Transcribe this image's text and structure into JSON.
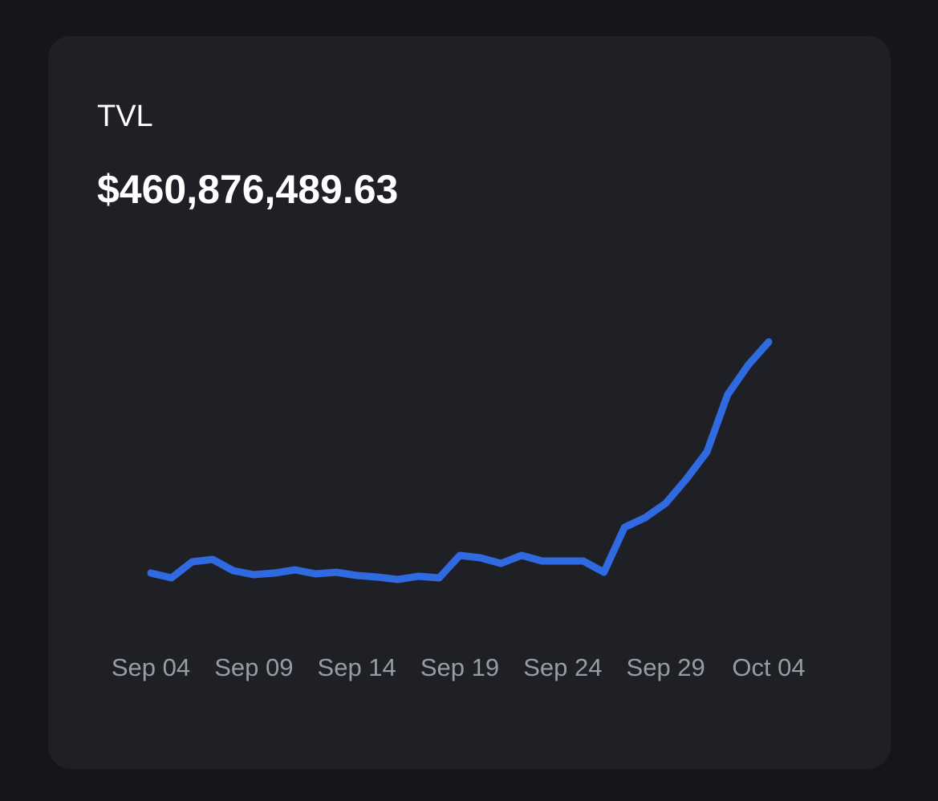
{
  "chart_data": {
    "type": "line",
    "title": "TVL",
    "subtitle": "$460,876,489.63",
    "categories": [
      "Sep 04",
      null,
      null,
      null,
      null,
      "Sep 09",
      null,
      null,
      null,
      null,
      "Sep 14",
      null,
      null,
      null,
      null,
      "Sep 19",
      null,
      null,
      null,
      null,
      "Sep 24",
      null,
      null,
      null,
      null,
      "Sep 29",
      null,
      null,
      null,
      null,
      "Oct 04"
    ],
    "series": [
      {
        "name": "TVL",
        "color": "#2f6ae0",
        "values": [
          173000000,
          167000000,
          187000000,
          190000000,
          176000000,
          171000000,
          173000000,
          177000000,
          172000000,
          174000000,
          170000000,
          168000000,
          165000000,
          169000000,
          167000000,
          195000000,
          192000000,
          185000000,
          195000000,
          188000000,
          188000000,
          188000000,
          174000000,
          230000000,
          242000000,
          260000000,
          290000000,
          324000000,
          395000000,
          432000000,
          461000000
        ]
      }
    ],
    "ylim": [
      100000000,
      500000000
    ]
  }
}
